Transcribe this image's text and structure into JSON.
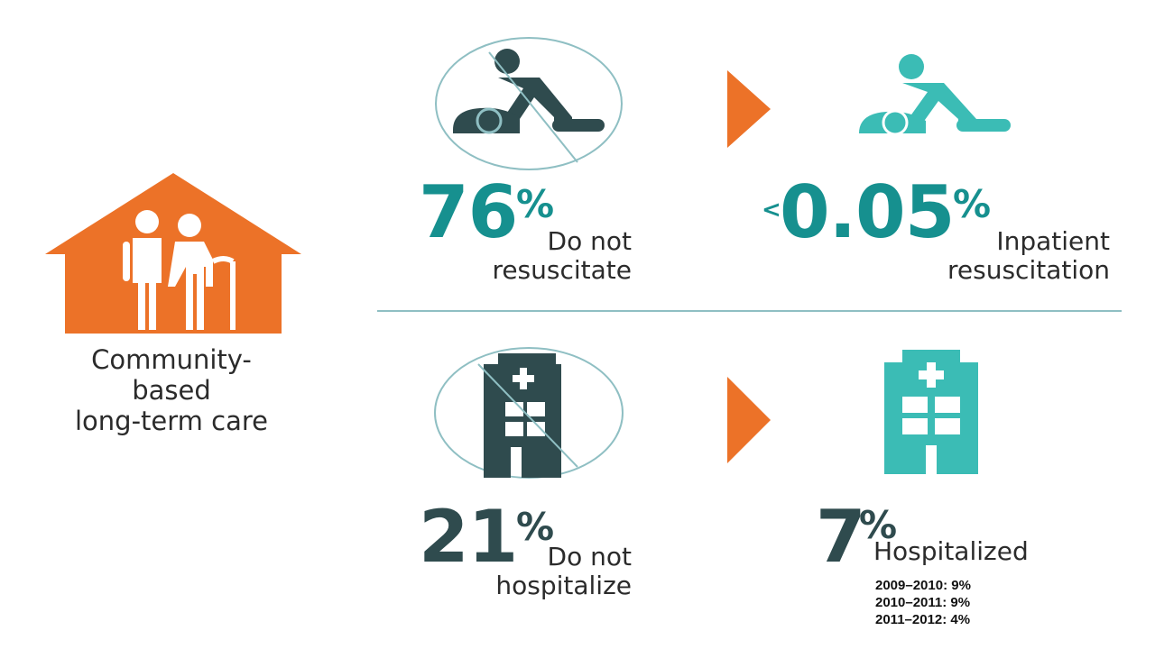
{
  "setting": {
    "label_lines": [
      "Community-",
      "based",
      "long-term care"
    ],
    "icon": "house-elderly-couple-icon",
    "color": "#ec7228"
  },
  "top_row": {
    "left": {
      "icon": "no-cpr-icon",
      "value": "76",
      "unit": "%",
      "label_lines": [
        "Do not",
        "resuscitate"
      ]
    },
    "arrow_icon": "arrow-right-icon",
    "right": {
      "icon": "cpr-icon",
      "prefix": "<",
      "value": "0.05",
      "unit": "%",
      "label_lines": [
        "Inpatient",
        "resuscitation"
      ]
    }
  },
  "bottom_row": {
    "left": {
      "icon": "no-hospital-icon",
      "value": "21",
      "unit": "%",
      "label_lines": [
        "Do not",
        "hospitalize"
      ]
    },
    "arrow_icon": "arrow-right-icon",
    "right": {
      "icon": "hospital-icon",
      "value": "7",
      "unit": "%",
      "label": "Hospitalized",
      "yearly": [
        "2009–2010: 9%",
        "2010–2011: 9%",
        "2011–2012: 4%"
      ]
    }
  },
  "colors": {
    "orange": "#ec7228",
    "teal": "#16908f",
    "teal_light": "#3bbcb5",
    "dark": "#2f4b4e",
    "ring": "#8fbfc3"
  }
}
